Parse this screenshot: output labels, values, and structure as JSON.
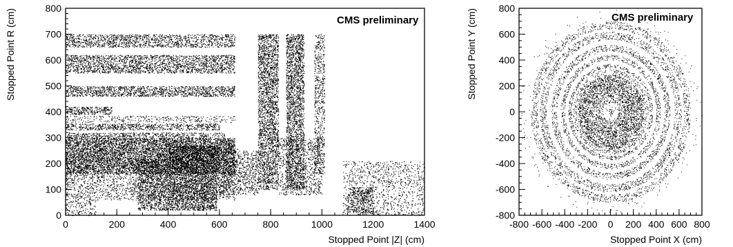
{
  "chart_data": [
    {
      "type": "scatter",
      "title": "",
      "annotation": "CMS preliminary",
      "xlabel": "Stopped Point |Z| (cm)",
      "ylabel": "Stopped Point R (cm)",
      "xlim": [
        0,
        1400
      ],
      "ylim": [
        0,
        800
      ],
      "x_major_ticks": [
        0,
        200,
        400,
        600,
        800,
        1000,
        1200,
        1400
      ],
      "x_minor_step": 50,
      "y_major_ticks": [
        0,
        100,
        200,
        300,
        400,
        500,
        600,
        700,
        800
      ],
      "y_minor_step": 20,
      "grid": false,
      "legend": "none",
      "marker_color": "#000000",
      "density_regions": [
        {
          "x": [
            0,
            660
          ],
          "y": [
            160,
            300
          ],
          "density": 1.0
        },
        {
          "x": [
            0,
            620
          ],
          "y": [
            300,
            320
          ],
          "density": 0.55
        },
        {
          "x": [
            0,
            600
          ],
          "y": [
            330,
            355
          ],
          "density": 0.6
        },
        {
          "x": [
            0,
            660
          ],
          "y": [
            360,
            385
          ],
          "density": 0.25
        },
        {
          "x": [
            0,
            180
          ],
          "y": [
            390,
            420
          ],
          "density": 0.7
        },
        {
          "x": [
            0,
            660
          ],
          "y": [
            460,
            500
          ],
          "density": 0.65
        },
        {
          "x": [
            0,
            660
          ],
          "y": [
            550,
            620
          ],
          "density": 0.6
        },
        {
          "x": [
            0,
            660
          ],
          "y": [
            650,
            700
          ],
          "density": 0.55
        },
        {
          "x": [
            0,
            660
          ],
          "y": [
            60,
            160
          ],
          "density": 0.3
        },
        {
          "x": [
            0,
            120
          ],
          "y": [
            0,
            60
          ],
          "density": 0.25
        },
        {
          "x": [
            280,
            400
          ],
          "y": [
            20,
            220
          ],
          "density": 0.6
        },
        {
          "x": [
            400,
            590
          ],
          "y": [
            20,
            270
          ],
          "density": 0.85
        },
        {
          "x": [
            590,
            680
          ],
          "y": [
            80,
            260
          ],
          "density": 0.45
        },
        {
          "x": [
            680,
            750
          ],
          "y": [
            80,
            250
          ],
          "density": 0.4
        },
        {
          "x": [
            750,
            830
          ],
          "y": [
            100,
            700
          ],
          "density": 0.7
        },
        {
          "x": [
            860,
            930
          ],
          "y": [
            100,
            700
          ],
          "density": 0.7
        },
        {
          "x": [
            970,
            1010
          ],
          "y": [
            160,
            700
          ],
          "density": 0.4
        },
        {
          "x": [
            830,
            1000
          ],
          "y": [
            80,
            300
          ],
          "density": 0.3
        },
        {
          "x": [
            1080,
            1400
          ],
          "y": [
            0,
            210
          ],
          "density": 0.2
        },
        {
          "x": [
            1100,
            1200
          ],
          "y": [
            10,
            110
          ],
          "density": 0.5
        }
      ]
    },
    {
      "type": "scatter",
      "title": "",
      "annotation": "CMS preliminary",
      "xlabel": "Stopped Point X (cm)",
      "ylabel": "Stopped Point Y (cm)",
      "xlim": [
        -800,
        800
      ],
      "ylim": [
        -800,
        800
      ],
      "x_major_ticks": [
        -800,
        -600,
        -400,
        -200,
        0,
        200,
        400,
        600,
        800
      ],
      "x_minor_step": 50,
      "y_major_ticks": [
        -800,
        -600,
        -400,
        -200,
        0,
        200,
        400,
        600,
        800
      ],
      "y_minor_step": 50,
      "grid": false,
      "legend": "none",
      "marker_color": "#000000",
      "rings": [
        {
          "r_min": 0,
          "r_max": 20,
          "density": 0.9
        },
        {
          "r_min": 20,
          "r_max": 70,
          "density": 0.08
        },
        {
          "r_min": 70,
          "r_max": 110,
          "density": 0.55
        },
        {
          "r_min": 115,
          "r_max": 135,
          "density": 0.9
        },
        {
          "r_min": 140,
          "r_max": 290,
          "density": 0.75
        },
        {
          "r_min": 295,
          "r_max": 330,
          "density": 0.35
        },
        {
          "r_min": 340,
          "r_max": 370,
          "density": 0.45
        },
        {
          "r_min": 400,
          "r_max": 440,
          "density": 0.4
        },
        {
          "r_min": 470,
          "r_max": 520,
          "density": 0.4
        },
        {
          "r_min": 560,
          "r_max": 620,
          "density": 0.35
        },
        {
          "r_min": 640,
          "r_max": 700,
          "density": 0.3
        },
        {
          "r_min": 700,
          "r_max": 800,
          "density": 0.02
        }
      ]
    }
  ]
}
